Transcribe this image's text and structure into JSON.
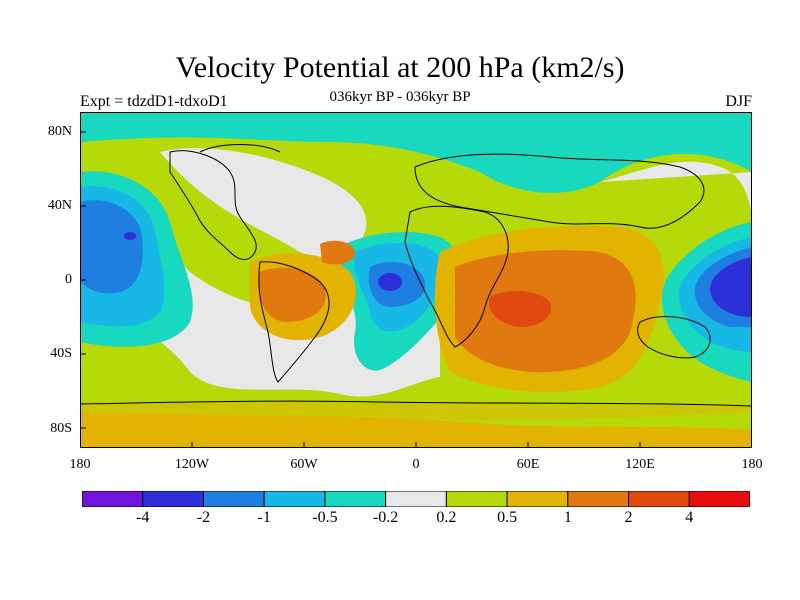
{
  "title": "Velocity Potential at 200 hPa (km2/s)",
  "subtitle": "036kyr BP - 036kyr BP",
  "left_label": "Expt = tdzdD1-tdxoD1",
  "right_label": "DJF",
  "lat_ticks": [
    "80N",
    "40N",
    "0",
    "40S",
    "80S"
  ],
  "lon_ticks": [
    "180",
    "120W",
    "60W",
    "0",
    "60E",
    "120E",
    "180"
  ],
  "colorbar": {
    "labels": [
      "-4",
      "-2",
      "-1",
      "-0.5",
      "-0.2",
      "0.2",
      "0.5",
      "1",
      "2",
      "4"
    ],
    "colors": [
      "#6f14d8",
      "#2d2fd9",
      "#1f7fe0",
      "#17b8e6",
      "#19d8c0",
      "#e8e8e8",
      "#b6d90a",
      "#e2b300",
      "#e07a10",
      "#e04a10",
      "#e80e0e"
    ]
  }
}
